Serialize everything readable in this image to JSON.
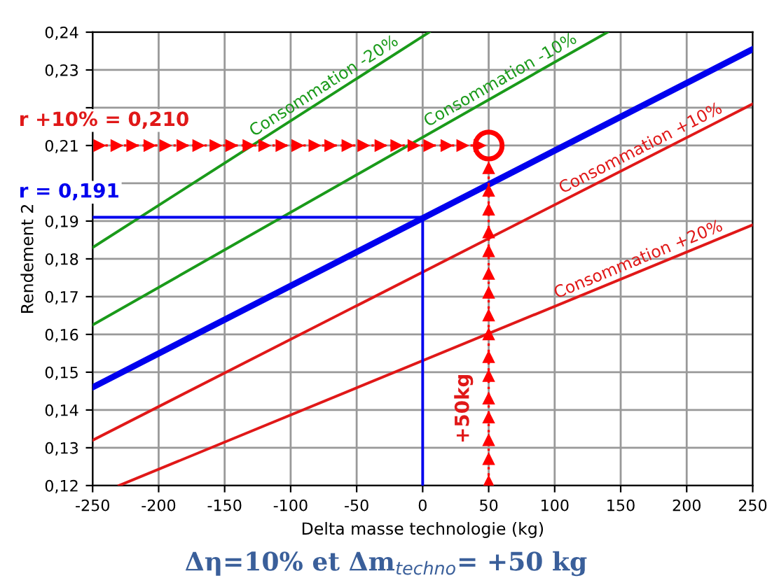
{
  "chart_data": {
    "type": "line",
    "xlabel": "Delta masse technologie (kg)",
    "ylabel": "Rendement 2",
    "xlim": [
      -250,
      250
    ],
    "ylim": [
      0.12,
      0.24
    ],
    "xticks": [
      -250,
      -200,
      -150,
      -100,
      -50,
      0,
      50,
      100,
      150,
      200,
      250
    ],
    "yticks": [
      {
        "value": 0.12,
        "label": "0,12"
      },
      {
        "value": 0.13,
        "label": "0,13"
      },
      {
        "value": 0.14,
        "label": "0,14"
      },
      {
        "value": 0.15,
        "label": "0,15"
      },
      {
        "value": 0.16,
        "label": "0,16"
      },
      {
        "value": 0.17,
        "label": "0,17"
      },
      {
        "value": 0.18,
        "label": "0,18"
      },
      {
        "value": 0.19,
        "label": "0,19"
      },
      {
        "value": 0.2,
        "label": null
      },
      {
        "value": 0.21,
        "label": "0,21"
      },
      {
        "value": 0.22,
        "label": null
      },
      {
        "value": 0.23,
        "label": "0,23"
      },
      {
        "value": 0.24,
        "label": "0,24"
      }
    ],
    "grid": true,
    "series": [
      {
        "color": "#0000ee",
        "x": [
          -250,
          250
        ],
        "values": [
          0.146,
          0.2355
        ]
      },
      {
        "name": "Consommation -20%",
        "color": "#1a9a1a",
        "x": [
          -250,
          5
        ],
        "values": [
          0.183,
          0.24
        ]
      },
      {
        "name": "Consommation -10%",
        "color": "#1a9a1a",
        "x": [
          -250,
          140
        ],
        "values": [
          0.1625,
          0.24
        ]
      },
      {
        "name": "Consommation +10%",
        "color": "#e01818",
        "x": [
          -250,
          250
        ],
        "values": [
          0.132,
          0.221
        ]
      },
      {
        "name": "Consommation +20%",
        "color": "#e01818",
        "x": [
          -230,
          250
        ],
        "values": [
          0.12,
          0.189
        ]
      },
      {
        "color": "#0000ee",
        "x": [
          -250,
          0
        ],
        "values": [
          0.191,
          0.191
        ]
      },
      {
        "color": "#0000ee",
        "x": [
          0,
          0
        ],
        "values": [
          0.12,
          0.191
        ]
      },
      {
        "color": "#ff0000",
        "line_style": "dotted",
        "marker": "triangle",
        "x": [
          -245,
          -232,
          -220,
          -207,
          -195,
          -182,
          -170,
          -157,
          -145,
          -132,
          -120,
          -107,
          -95,
          -82,
          -70,
          -57,
          -45,
          -32,
          -20,
          -7,
          5,
          18,
          30,
          43
        ],
        "values": [
          0.21,
          0.21,
          0.21,
          0.21,
          0.21,
          0.21,
          0.21,
          0.21,
          0.21,
          0.21,
          0.21,
          0.21,
          0.21,
          0.21,
          0.21,
          0.21,
          0.21,
          0.21,
          0.21,
          0.21,
          0.21,
          0.21,
          0.21,
          0.21
        ]
      },
      {
        "color": "#ff0000",
        "line_style": "dotted",
        "marker": "triangle",
        "x": [
          50,
          50,
          50,
          50,
          50,
          50,
          50,
          50,
          50,
          50,
          50,
          50,
          50,
          50,
          50,
          50
        ],
        "values": [
          0.121,
          0.127,
          0.132,
          0.138,
          0.143,
          0.149,
          0.154,
          0.16,
          0.165,
          0.171,
          0.176,
          0.182,
          0.187,
          0.193,
          0.198,
          0.204
        ]
      },
      {
        "type": "scatter",
        "color": "#ff0000",
        "marker": "circle",
        "x": [
          50
        ],
        "values": [
          0.21
        ]
      }
    ],
    "annotations": [
      {
        "text": "r +10% = 0,210",
        "y": 0.21
      },
      "r = 0,191",
      {
        "text": "+50kg",
        "x": 50
      },
      "Δη=10% et Δm$_{techno}$= +50 kg"
    ]
  }
}
